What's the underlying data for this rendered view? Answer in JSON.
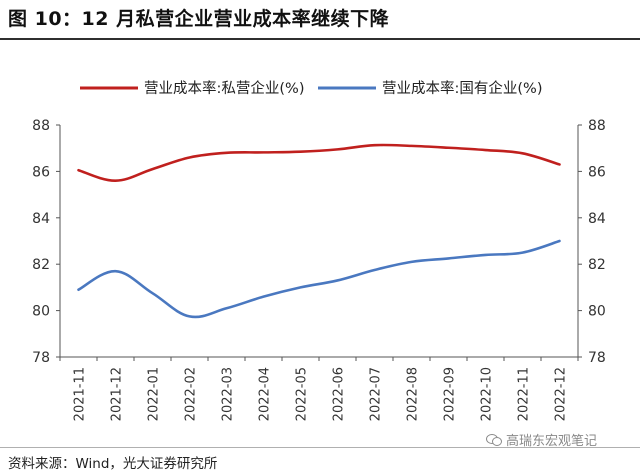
{
  "title": "图 10：12 月私营企业营业成本率继续下降",
  "source": "资料来源：Wind，光大证券研究所",
  "watermark": "高瑞东宏观笔记",
  "colors": {
    "private": "#c0201e",
    "state": "#4a78c0"
  },
  "chart_data": {
    "type": "line",
    "x": [
      "2021-11",
      "2021-12",
      "2022-01",
      "2022-02",
      "2022-03",
      "2022-04",
      "2022-05",
      "2022-06",
      "2022-07",
      "2022-08",
      "2022-09",
      "2022-10",
      "2022-11",
      "2022-12"
    ],
    "series": [
      {
        "name": "营业成本率:私营企业(%)",
        "values": [
          86.05,
          85.6,
          86.1,
          86.6,
          86.8,
          86.82,
          86.85,
          86.95,
          87.13,
          87.1,
          87.02,
          86.92,
          86.78,
          86.3
        ]
      },
      {
        "name": "营业成本率:国有企业(%)",
        "values": [
          80.9,
          81.7,
          80.75,
          79.75,
          80.1,
          80.6,
          81.0,
          81.3,
          81.75,
          82.1,
          82.25,
          82.4,
          82.5,
          83.0
        ]
      }
    ],
    "y_ticks": [
      "78",
      "80",
      "82",
      "84",
      "86",
      "88"
    ],
    "ylim": [
      78,
      88
    ],
    "legend_position": "top",
    "grid": false
  }
}
